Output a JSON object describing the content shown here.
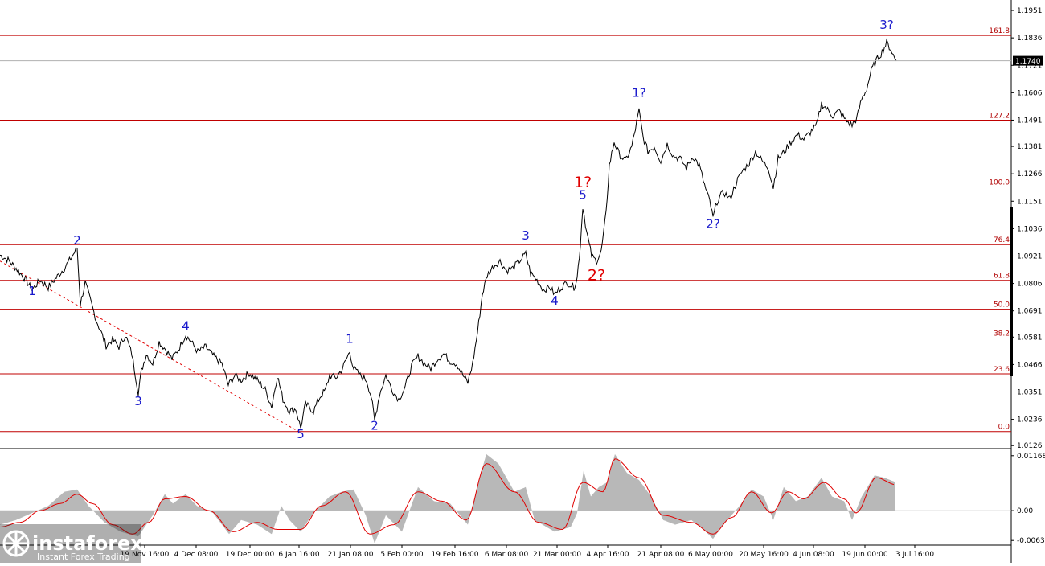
{
  "chart_data": [
    {
      "type": "line",
      "symbol": "",
      "y_axis_ticks": [
        1.1951,
        1.1836,
        1.1721,
        1.1606,
        1.1491,
        1.1381,
        1.1266,
        1.1151,
        1.1036,
        1.0921,
        1.0806,
        1.0691,
        1.0581,
        1.0466,
        1.0351,
        1.0236,
        1.0126
      ],
      "ylim": [
        1.012,
        1.1995
      ],
      "current_price": "1.1740",
      "x_ticks": [
        "19 Nov 16:00",
        "4 Dec 08:00",
        "19 Dec 00:00",
        "6 Jan 16:00",
        "21 Jan 08:00",
        "5 Feb 00:00",
        "19 Feb 16:00",
        "6 Mar 08:00",
        "21 Mar 00:00",
        "4 Apr 16:00",
        "21 Apr 08:00",
        "6 May 00:00",
        "20 May 16:00",
        "4 Jun 08:00",
        "19 Jun 00:00",
        "3 Jul 16:00"
      ],
      "fib_levels": [
        {
          "label": "161.8",
          "price": 1.1846
        },
        {
          "label": "127.2",
          "price": 1.1491
        },
        {
          "label": "100.0",
          "price": 1.1211
        },
        {
          "label": "76.4",
          "price": 1.0969
        },
        {
          "label": "61.8",
          "price": 1.0819
        },
        {
          "label": "50.0",
          "price": 1.0698
        },
        {
          "label": "38.2",
          "price": 1.0577
        },
        {
          "label": "23.6",
          "price": 1.0427
        },
        {
          "label": "0.0",
          "price": 1.0185
        }
      ],
      "wave_labels": [
        {
          "text": "1",
          "color": "blue",
          "t": 40,
          "price": 1.0757
        },
        {
          "text": "2",
          "color": "blue",
          "t": 96,
          "price": 1.0969
        },
        {
          "text": "3",
          "color": "blue",
          "t": 172,
          "price": 1.0295
        },
        {
          "text": "4",
          "color": "blue",
          "t": 231,
          "price": 1.061
        },
        {
          "text": "5",
          "color": "blue",
          "t": 374,
          "price": 1.0157
        },
        {
          "text": "1",
          "color": "blue",
          "t": 435,
          "price": 1.0557
        },
        {
          "text": "2",
          "color": "blue",
          "t": 466,
          "price": 1.0193
        },
        {
          "text": "3",
          "color": "blue",
          "t": 654,
          "price": 1.099
        },
        {
          "text": "4",
          "color": "blue",
          "t": 690,
          "price": 1.0717
        },
        {
          "text": "5",
          "color": "blue",
          "t": 725,
          "price": 1.116
        },
        {
          "text": "1?",
          "color": "red",
          "t": 725,
          "price": 1.121
        },
        {
          "text": "2?",
          "color": "red",
          "t": 742,
          "price": 1.0819
        },
        {
          "text": "1?",
          "color": "blue",
          "t": 795,
          "price": 1.1588
        },
        {
          "text": "2?",
          "color": "blue",
          "t": 887,
          "price": 1.1039
        },
        {
          "text": "3?",
          "color": "blue",
          "t": 1103,
          "price": 1.1874
        }
      ],
      "price_path": [
        [
          0,
          1.0925
        ],
        [
          10,
          1.0905
        ],
        [
          20,
          1.087
        ],
        [
          30,
          1.083
        ],
        [
          40,
          1.078
        ],
        [
          50,
          1.082
        ],
        [
          60,
          1.079
        ],
        [
          70,
          1.083
        ],
        [
          80,
          1.087
        ],
        [
          88,
          1.091
        ],
        [
          96,
          1.0955
        ],
        [
          100,
          1.072
        ],
        [
          106,
          1.081
        ],
        [
          112,
          1.074
        ],
        [
          120,
          1.065
        ],
        [
          126,
          1.06
        ],
        [
          132,
          1.0545
        ],
        [
          140,
          1.057
        ],
        [
          148,
          1.054
        ],
        [
          156,
          1.059
        ],
        [
          164,
          1.051
        ],
        [
          172,
          1.035
        ],
        [
          176,
          1.044
        ],
        [
          182,
          1.051
        ],
        [
          190,
          1.047
        ],
        [
          198,
          1.056
        ],
        [
          206,
          1.053
        ],
        [
          214,
          1.049
        ],
        [
          222,
          1.053
        ],
        [
          231,
          1.059
        ],
        [
          238,
          1.056
        ],
        [
          246,
          1.052
        ],
        [
          256,
          1.054
        ],
        [
          266,
          1.05
        ],
        [
          276,
          1.047
        ],
        [
          284,
          1.038
        ],
        [
          292,
          1.042
        ],
        [
          300,
          1.04
        ],
        [
          310,
          1.043
        ],
        [
          320,
          1.04
        ],
        [
          330,
          1.036
        ],
        [
          338,
          1.029
        ],
        [
          345,
          1.042
        ],
        [
          352,
          1.032
        ],
        [
          360,
          1.027
        ],
        [
          368,
          1.028
        ],
        [
          374,
          1.02
        ],
        [
          380,
          1.03
        ],
        [
          390,
          1.027
        ],
        [
          398,
          1.033
        ],
        [
          405,
          1.036
        ],
        [
          410,
          1.042
        ],
        [
          418,
          1.041
        ],
        [
          426,
          1.045
        ],
        [
          435,
          1.052
        ],
        [
          440,
          1.045
        ],
        [
          448,
          1.042
        ],
        [
          456,
          1.04
        ],
        [
          462,
          1.033
        ],
        [
          466,
          1.023
        ],
        [
          472,
          1.034
        ],
        [
          480,
          1.042
        ],
        [
          488,
          1.036
        ],
        [
          496,
          1.032
        ],
        [
          504,
          1.037
        ],
        [
          512,
          1.046
        ],
        [
          520,
          1.05
        ],
        [
          528,
          1.047
        ],
        [
          536,
          1.045
        ],
        [
          544,
          1.049
        ],
        [
          552,
          1.051
        ],
        [
          560,
          1.048
        ],
        [
          568,
          1.047
        ],
        [
          576,
          1.042
        ],
        [
          582,
          1.039
        ],
        [
          588,
          1.047
        ],
        [
          594,
          1.06
        ],
        [
          600,
          1.076
        ],
        [
          606,
          1.084
        ],
        [
          614,
          1.088
        ],
        [
          622,
          1.09
        ],
        [
          630,
          1.086
        ],
        [
          638,
          1.087
        ],
        [
          646,
          1.09
        ],
        [
          654,
          1.093
        ],
        [
          660,
          1.085
        ],
        [
          668,
          1.082
        ],
        [
          676,
          1.078
        ],
        [
          684,
          1.079
        ],
        [
          690,
          1.076
        ],
        [
          698,
          1.079
        ],
        [
          706,
          1.081
        ],
        [
          714,
          1.079
        ],
        [
          718,
          1.083
        ],
        [
          722,
          1.097
        ],
        [
          725,
          1.113
        ],
        [
          730,
          1.102
        ],
        [
          736,
          1.092
        ],
        [
          742,
          1.09
        ],
        [
          748,
          1.094
        ],
        [
          754,
          1.11
        ],
        [
          758,
          1.13
        ],
        [
          764,
          1.14
        ],
        [
          770,
          1.135
        ],
        [
          778,
          1.132
        ],
        [
          786,
          1.138
        ],
        [
          795,
          1.153
        ],
        [
          800,
          1.142
        ],
        [
          806,
          1.136
        ],
        [
          814,
          1.138
        ],
        [
          822,
          1.132
        ],
        [
          830,
          1.139
        ],
        [
          838,
          1.134
        ],
        [
          846,
          1.133
        ],
        [
          854,
          1.129
        ],
        [
          862,
          1.134
        ],
        [
          870,
          1.13
        ],
        [
          878,
          1.12
        ],
        [
          883,
          1.115
        ],
        [
          887,
          1.108
        ],
        [
          892,
          1.115
        ],
        [
          900,
          1.119
        ],
        [
          908,
          1.116
        ],
        [
          916,
          1.123
        ],
        [
          924,
          1.128
        ],
        [
          932,
          1.131
        ],
        [
          940,
          1.136
        ],
        [
          948,
          1.132
        ],
        [
          956,
          1.129
        ],
        [
          962,
          1.121
        ],
        [
          968,
          1.133
        ],
        [
          976,
          1.136
        ],
        [
          984,
          1.14
        ],
        [
          992,
          1.143
        ],
        [
          1000,
          1.141
        ],
        [
          1008,
          1.144
        ],
        [
          1016,
          1.147
        ],
        [
          1022,
          1.156
        ],
        [
          1028,
          1.154
        ],
        [
          1036,
          1.151
        ],
        [
          1044,
          1.153
        ],
        [
          1052,
          1.149
        ],
        [
          1060,
          1.147
        ],
        [
          1066,
          1.15
        ],
        [
          1072,
          1.158
        ],
        [
          1078,
          1.162
        ],
        [
          1084,
          1.17
        ],
        [
          1090,
          1.174
        ],
        [
          1096,
          1.177
        ],
        [
          1103,
          1.1815
        ],
        [
          1108,
          1.179
        ],
        [
          1113,
          1.175
        ],
        [
          1115,
          1.174
        ]
      ],
      "diagonal_line": [
        [
          0,
          1.09
        ],
        [
          374,
          1.018
        ]
      ],
      "mixed_scale_note": ""
    },
    {
      "type": "area",
      "oscillator_ticks": [
        "0.01168",
        "0.00",
        "-0.00635"
      ],
      "ylim": [
        -0.007,
        0.0125
      ],
      "hist_path": [
        [
          0,
          -0.003
        ],
        [
          20,
          -0.002
        ],
        [
          40,
          -0.0005
        ],
        [
          60,
          0.001
        ],
        [
          80,
          0.004
        ],
        [
          96,
          0.0045
        ],
        [
          110,
          0.001
        ],
        [
          130,
          -0.0025
        ],
        [
          150,
          -0.0045
        ],
        [
          172,
          -0.0055
        ],
        [
          190,
          -0.001
        ],
        [
          205,
          0.0035
        ],
        [
          215,
          0.0015
        ],
        [
          231,
          0.0035
        ],
        [
          245,
          0.001
        ],
        [
          265,
          -0.0005
        ],
        [
          285,
          -0.005
        ],
        [
          300,
          -0.002
        ],
        [
          320,
          -0.003
        ],
        [
          338,
          -0.005
        ],
        [
          350,
          0.001
        ],
        [
          360,
          -0.002
        ],
        [
          374,
          -0.0045
        ],
        [
          390,
          -0.0005
        ],
        [
          410,
          0.003
        ],
        [
          425,
          0.004
        ],
        [
          440,
          0.0045
        ],
        [
          455,
          -0.001
        ],
        [
          466,
          -0.007
        ],
        [
          480,
          -0.001
        ],
        [
          500,
          -0.0045
        ],
        [
          520,
          0.005
        ],
        [
          540,
          0.002
        ],
        [
          560,
          0.0015
        ],
        [
          582,
          -0.003
        ],
        [
          595,
          0.006
        ],
        [
          605,
          0.012
        ],
        [
          620,
          0.01
        ],
        [
          640,
          0.004
        ],
        [
          654,
          0.005
        ],
        [
          665,
          -0.002
        ],
        [
          690,
          -0.0045
        ],
        [
          710,
          -0.0035
        ],
        [
          718,
          -0.0005
        ],
        [
          726,
          0.0085
        ],
        [
          735,
          0.003
        ],
        [
          745,
          0.005
        ],
        [
          755,
          0.006
        ],
        [
          765,
          0.012
        ],
        [
          780,
          0.008
        ],
        [
          795,
          0.0065
        ],
        [
          810,
          0.003
        ],
        [
          825,
          -0.002
        ],
        [
          840,
          -0.003
        ],
        [
          860,
          -0.002
        ],
        [
          878,
          -0.0045
        ],
        [
          887,
          -0.006
        ],
        [
          900,
          -0.003
        ],
        [
          920,
          0.001
        ],
        [
          935,
          0.0045
        ],
        [
          950,
          0.003
        ],
        [
          962,
          -0.002
        ],
        [
          975,
          0.005
        ],
        [
          990,
          0.002
        ],
        [
          1005,
          0.003
        ],
        [
          1022,
          0.007
        ],
        [
          1035,
          0.003
        ],
        [
          1050,
          0.002
        ],
        [
          1060,
          -0.002
        ],
        [
          1072,
          0.003
        ],
        [
          1088,
          0.0075
        ],
        [
          1100,
          0.007
        ],
        [
          1115,
          0.006
        ]
      ],
      "signal_path": [
        [
          0,
          -0.0035
        ],
        [
          25,
          -0.0025
        ],
        [
          50,
          0.0
        ],
        [
          75,
          0.0015
        ],
        [
          96,
          0.0035
        ],
        [
          115,
          0.0015
        ],
        [
          140,
          -0.003
        ],
        [
          165,
          -0.005
        ],
        [
          185,
          -0.0025
        ],
        [
          205,
          0.0025
        ],
        [
          231,
          0.003
        ],
        [
          260,
          0.0
        ],
        [
          290,
          -0.0045
        ],
        [
          320,
          -0.0025
        ],
        [
          345,
          -0.004
        ],
        [
          374,
          -0.004
        ],
        [
          400,
          0.001
        ],
        [
          430,
          0.004
        ],
        [
          460,
          -0.005
        ],
        [
          490,
          -0.003
        ],
        [
          520,
          0.004
        ],
        [
          550,
          0.002
        ],
        [
          580,
          -0.002
        ],
        [
          605,
          0.01
        ],
        [
          640,
          0.004
        ],
        [
          670,
          -0.0025
        ],
        [
          700,
          -0.004
        ],
        [
          725,
          0.006
        ],
        [
          750,
          0.004
        ],
        [
          765,
          0.011
        ],
        [
          795,
          0.007
        ],
        [
          825,
          -0.001
        ],
        [
          860,
          -0.0025
        ],
        [
          887,
          -0.005
        ],
        [
          910,
          -0.0015
        ],
        [
          935,
          0.004
        ],
        [
          960,
          -0.0005
        ],
        [
          980,
          0.004
        ],
        [
          1000,
          0.0025
        ],
        [
          1025,
          0.006
        ],
        [
          1050,
          0.0025
        ],
        [
          1065,
          -0.0005
        ],
        [
          1090,
          0.007
        ],
        [
          1115,
          0.0055
        ]
      ]
    }
  ],
  "branding": {
    "logo_text": "instaforex",
    "logo_sub": "Instant Forex Trading"
  }
}
